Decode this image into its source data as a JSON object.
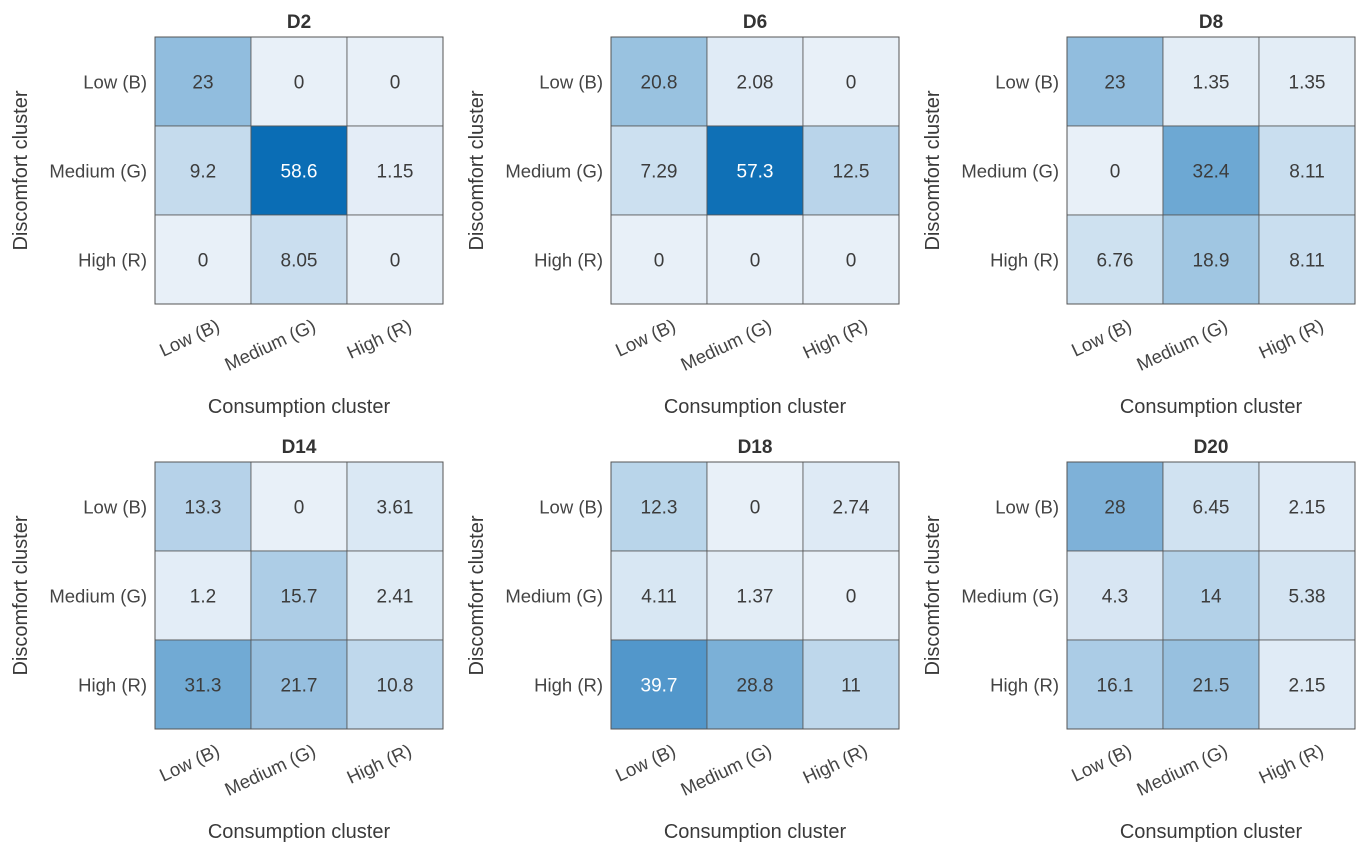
{
  "colors": {
    "scale_low": "#e8f0f8",
    "scale_high": "#0a6db5",
    "cell_border": "#555555",
    "text_dark": "#3c3c3c",
    "text_light": "#ffffff"
  },
  "chart_data": [
    {
      "type": "heatmap",
      "title": "D2",
      "xlabel": "Consumption cluster",
      "ylabel": "Discomfort cluster",
      "x_categories": [
        "Low (B)",
        "Medium (G)",
        "High (R)"
      ],
      "y_categories": [
        "Low (B)",
        "Medium (G)",
        "High (R)"
      ],
      "values": [
        [
          23,
          0,
          0
        ],
        [
          9.2,
          58.6,
          1.15
        ],
        [
          0,
          8.05,
          0
        ]
      ]
    },
    {
      "type": "heatmap",
      "title": "D6",
      "xlabel": "Consumption cluster",
      "ylabel": "Discomfort cluster",
      "x_categories": [
        "Low (B)",
        "Medium (G)",
        "High (R)"
      ],
      "y_categories": [
        "Low (B)",
        "Medium (G)",
        "High (R)"
      ],
      "values": [
        [
          20.8,
          2.08,
          0
        ],
        [
          7.29,
          57.3,
          12.5
        ],
        [
          0,
          0,
          0
        ]
      ]
    },
    {
      "type": "heatmap",
      "title": "D8",
      "xlabel": "Consumption cluster",
      "ylabel": "Discomfort cluster",
      "x_categories": [
        "Low (B)",
        "Medium (G)",
        "High (R)"
      ],
      "y_categories": [
        "Low (B)",
        "Medium (G)",
        "High (R)"
      ],
      "values": [
        [
          23,
          1.35,
          1.35
        ],
        [
          0,
          32.4,
          8.11
        ],
        [
          6.76,
          18.9,
          8.11
        ]
      ]
    },
    {
      "type": "heatmap",
      "title": "D14",
      "xlabel": "Consumption cluster",
      "ylabel": "Discomfort cluster",
      "x_categories": [
        "Low (B)",
        "Medium (G)",
        "High (R)"
      ],
      "y_categories": [
        "Low (B)",
        "Medium (G)",
        "High (R)"
      ],
      "values": [
        [
          13.3,
          0,
          3.61
        ],
        [
          1.2,
          15.7,
          2.41
        ],
        [
          31.3,
          21.7,
          10.8
        ]
      ]
    },
    {
      "type": "heatmap",
      "title": "D18",
      "xlabel": "Consumption cluster",
      "ylabel": "Discomfort cluster",
      "x_categories": [
        "Low (B)",
        "Medium (G)",
        "High (R)"
      ],
      "y_categories": [
        "Low (B)",
        "Medium (G)",
        "High (R)"
      ],
      "values": [
        [
          12.3,
          0,
          2.74
        ],
        [
          4.11,
          1.37,
          0
        ],
        [
          39.7,
          28.8,
          11
        ]
      ]
    },
    {
      "type": "heatmap",
      "title": "D20",
      "xlabel": "Consumption cluster",
      "ylabel": "Discomfort cluster",
      "x_categories": [
        "Low (B)",
        "Medium (G)",
        "High (R)"
      ],
      "y_categories": [
        "Low (B)",
        "Medium (G)",
        "High (R)"
      ],
      "values": [
        [
          28,
          6.45,
          2.15
        ],
        [
          4.3,
          14,
          5.38
        ],
        [
          16.1,
          21.5,
          2.15
        ]
      ]
    }
  ]
}
